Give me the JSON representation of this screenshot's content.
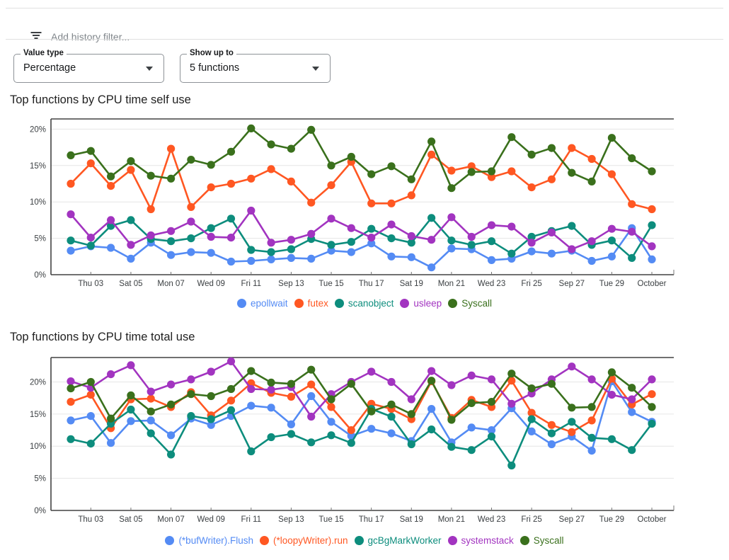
{
  "filter_bar": {
    "placeholder": "Add history filter..."
  },
  "controls": {
    "value_type": {
      "label": "Value type",
      "value": "Percentage"
    },
    "show_up_to": {
      "label": "Show up to",
      "value": "5 functions"
    }
  },
  "palette": {
    "blue": "#548bf4",
    "orange": "#ff5722",
    "teal": "#0d8d7d",
    "purple": "#a234c0",
    "green": "#3a701c"
  },
  "chart_data": [
    {
      "type": "line",
      "title": "Top functions by CPU time self use",
      "y_tick_labels": [
        "0%",
        "5%",
        "10%",
        "15%",
        "20%"
      ],
      "y_tick_values": [
        0,
        5,
        10,
        15,
        20
      ],
      "ylim": [
        0,
        21.4
      ],
      "grid": "horizontal-only",
      "legend_position": "bottom",
      "x_tick_labels": [
        "Thu 03",
        "Sat 05",
        "Mon 07",
        "Wed 09",
        "Fri 11",
        "Sep 13",
        "Tue 15",
        "Thu 17",
        "Sat 19",
        "Mon 21",
        "Wed 23",
        "Fri 25",
        "Sep 27",
        "Tue 29",
        "October"
      ],
      "points_per_series": 30,
      "series": [
        {
          "name": "epollwait",
          "color": "#548bf4",
          "values": [
            3.3,
            3.9,
            3.7,
            2.2,
            4.4,
            2.7,
            3.1,
            3.0,
            1.8,
            1.9,
            2.1,
            2.3,
            2.2,
            3.3,
            3.1,
            4.3,
            2.5,
            2.4,
            1.0,
            3.6,
            3.5,
            2.0,
            2.2,
            3.2,
            2.9,
            3.3,
            1.9,
            2.5,
            6.4,
            2.1
          ]
        },
        {
          "name": "futex",
          "color": "#ff5722",
          "values": [
            12.5,
            15.3,
            12.2,
            14.4,
            9.0,
            17.3,
            9.3,
            12.0,
            12.5,
            13.2,
            14.5,
            12.8,
            9.9,
            12.3,
            15.5,
            9.8,
            9.8,
            10.9,
            16.5,
            14.3,
            14.9,
            13.4,
            14.2,
            12.0,
            13.1,
            17.4,
            15.9,
            13.8,
            9.7,
            9.0
          ]
        },
        {
          "name": "scanobject",
          "color": "#0d8d7d",
          "values": [
            4.7,
            4.0,
            6.7,
            7.5,
            4.9,
            4.6,
            5.0,
            6.4,
            7.7,
            3.4,
            3.1,
            3.5,
            4.9,
            4.1,
            4.5,
            6.3,
            5.0,
            4.4,
            7.8,
            4.7,
            4.1,
            4.6,
            2.9,
            5.2,
            6.0,
            6.7,
            4.1,
            4.7,
            2.3,
            6.8
          ]
        },
        {
          "name": "usleep",
          "color": "#a234c0",
          "values": [
            8.3,
            5.1,
            7.5,
            4.1,
            5.4,
            6.0,
            7.3,
            5.2,
            5.1,
            8.8,
            4.4,
            4.8,
            5.6,
            7.7,
            6.4,
            5.1,
            6.9,
            5.3,
            4.8,
            7.9,
            5.2,
            6.8,
            6.6,
            4.4,
            5.8,
            3.5,
            4.6,
            6.3,
            5.9,
            3.9
          ]
        },
        {
          "name": "Syscall",
          "color": "#3a701c",
          "values": [
            16.4,
            17.0,
            13.5,
            15.6,
            13.6,
            13.2,
            15.8,
            15.1,
            16.9,
            20.1,
            17.9,
            17.3,
            19.9,
            15.0,
            16.2,
            13.8,
            14.9,
            13.1,
            18.3,
            11.9,
            14.1,
            14.2,
            18.9,
            16.5,
            17.4,
            14.0,
            12.8,
            18.8,
            16.0,
            14.2
          ]
        }
      ]
    },
    {
      "type": "line",
      "title": "Top functions by CPU time total use",
      "y_tick_labels": [
        "0%",
        "5%",
        "10%",
        "15%",
        "20%"
      ],
      "y_tick_values": [
        0,
        5,
        10,
        15,
        20
      ],
      "ylim": [
        0,
        23.8
      ],
      "grid": "horizontal-only",
      "legend_position": "bottom",
      "x_tick_labels": [
        "Thu 03",
        "Sat 05",
        "Mon 07",
        "Wed 09",
        "Fri 11",
        "Sep 13",
        "Tue 15",
        "Thu 17",
        "Sat 19",
        "Mon 21",
        "Wed 23",
        "Fri 25",
        "Sep 27",
        "Tue 29",
        "October"
      ],
      "points_per_series": 30,
      "series": [
        {
          "name": "(*bufWriter).Flush",
          "color": "#548bf4",
          "values": [
            14.0,
            14.7,
            10.5,
            13.9,
            14.0,
            11.7,
            14.3,
            13.3,
            14.7,
            16.3,
            16.0,
            13.4,
            17.8,
            13.8,
            11.6,
            12.7,
            12.0,
            10.8,
            15.8,
            10.6,
            12.9,
            12.5,
            15.9,
            12.3,
            10.3,
            11.5,
            9.3,
            20.1,
            15.3,
            13.8
          ]
        },
        {
          "name": "(*loopyWriter).run",
          "color": "#ff5722",
          "values": [
            16.9,
            18.0,
            12.8,
            17.3,
            17.4,
            16.1,
            18.4,
            14.8,
            17.1,
            19.8,
            18.3,
            17.7,
            19.6,
            16.1,
            12.5,
            16.6,
            15.8,
            14.2,
            20.1,
            14.4,
            17.2,
            16.1,
            20.2,
            15.2,
            13.3,
            12.2,
            14.0,
            20.5,
            16.5,
            18.1
          ]
        },
        {
          "name": "gcBgMarkWorker",
          "color": "#0d8d7d",
          "values": [
            11.1,
            10.4,
            13.5,
            15.7,
            12.0,
            8.7,
            14.7,
            14.2,
            15.6,
            9.2,
            11.4,
            11.9,
            10.6,
            11.7,
            10.5,
            15.8,
            14.6,
            10.3,
            12.6,
            9.9,
            9.4,
            11.5,
            7.0,
            14.2,
            12.0,
            13.8,
            11.3,
            11.1,
            9.4,
            13.5
          ]
        },
        {
          "name": "systemstack",
          "color": "#a234c0",
          "values": [
            20.1,
            19.1,
            21.2,
            22.6,
            18.5,
            19.6,
            20.4,
            21.6,
            23.2,
            18.9,
            18.8,
            19.2,
            14.6,
            18.1,
            20.0,
            21.6,
            20.0,
            17.3,
            21.7,
            19.5,
            21.0,
            20.4,
            16.6,
            18.2,
            20.4,
            22.4,
            20.4,
            18.0,
            17.3,
            20.4
          ]
        },
        {
          "name": "Syscall",
          "color": "#3a701c",
          "values": [
            19.0,
            20.0,
            14.3,
            17.9,
            15.4,
            16.5,
            18.1,
            17.8,
            18.9,
            21.7,
            19.9,
            19.7,
            21.9,
            17.3,
            19.7,
            15.4,
            16.5,
            15.0,
            20.2,
            14.1,
            16.7,
            16.9,
            21.3,
            19.0,
            19.7,
            16.0,
            16.1,
            21.5,
            19.1,
            16.1
          ]
        }
      ]
    }
  ]
}
